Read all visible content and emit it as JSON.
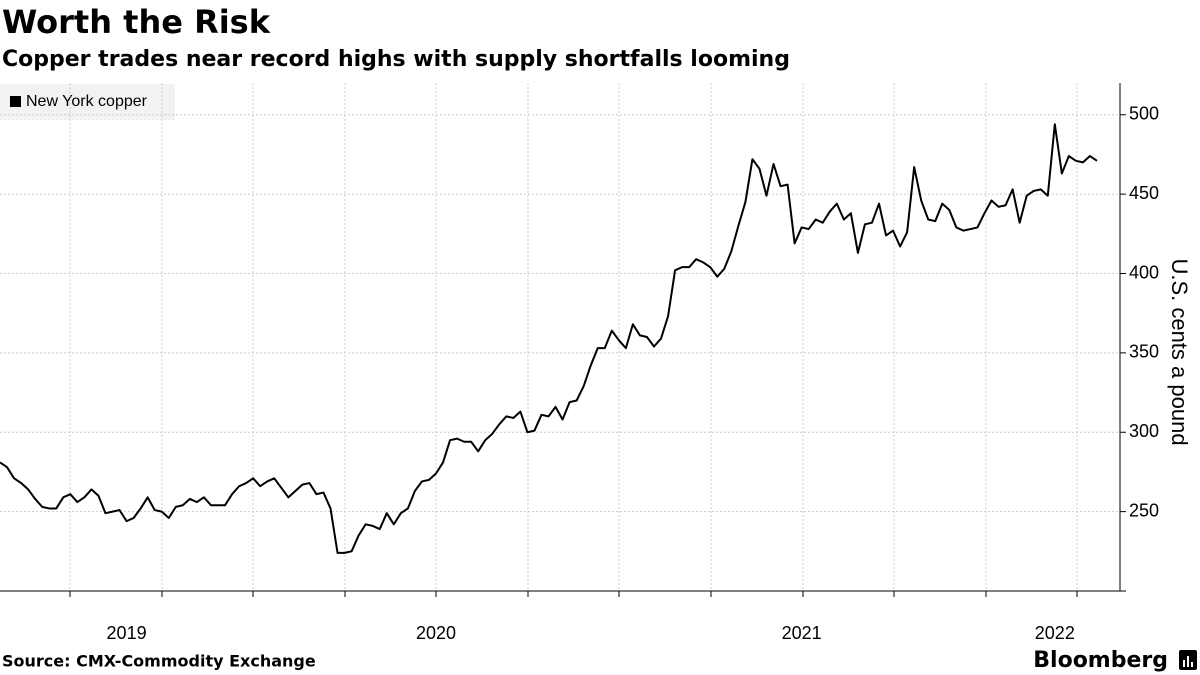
{
  "title": "Worth the Risk",
  "subtitle": "Copper trades near record highs with supply shortfalls looming",
  "source": "Source: CMX-Commodity Exchange",
  "brand": "Bloomberg",
  "chart_data": {
    "type": "line",
    "y_label": "U.S. cents a pound",
    "ylim": [
      200,
      520
    ],
    "yticks": [
      250,
      300,
      350,
      400,
      450,
      500
    ],
    "grid": true,
    "categories": [
      null,
      null,
      null,
      null,
      null,
      null,
      null,
      null,
      null,
      null,
      null,
      null,
      null,
      null,
      null,
      null,
      null,
      null,
      "2019",
      null,
      null,
      null,
      null,
      null,
      null,
      null,
      null,
      null,
      null,
      null,
      null,
      null,
      null,
      null,
      null,
      null,
      null,
      null,
      null,
      null,
      null,
      null,
      null,
      null,
      null,
      null,
      null,
      null,
      null,
      null,
      null,
      null,
      null,
      null,
      null,
      null,
      null,
      null,
      null,
      null,
      null,
      null,
      "2020",
      null,
      null,
      null,
      null,
      null,
      null,
      null,
      null,
      null,
      null,
      null,
      null,
      null,
      null,
      null,
      null,
      null,
      null,
      null,
      null,
      null,
      null,
      null,
      null,
      null,
      null,
      null,
      null,
      null,
      null,
      null,
      null,
      null,
      null,
      null,
      null,
      null,
      null,
      null,
      null,
      null,
      null,
      null,
      null,
      null,
      null,
      null,
      null,
      null,
      null,
      null,
      "2021",
      null,
      null,
      null,
      null,
      null,
      null,
      null,
      null,
      null,
      null,
      null,
      null,
      null,
      null,
      null,
      null,
      null,
      null,
      null,
      null,
      null,
      null,
      null,
      null,
      null,
      null,
      null,
      null,
      null,
      null,
      null,
      null,
      null,
      null,
      null,
      "2022",
      null,
      null,
      null,
      null,
      null,
      null
    ],
    "series": [
      {
        "name": "New York copper",
        "color": "#000000",
        "values": [
          281,
          278,
          271,
          268,
          264,
          258,
          253,
          252,
          252,
          259,
          261,
          256,
          259,
          264,
          260,
          249,
          250,
          251,
          244,
          246,
          252,
          259,
          251,
          250,
          246,
          253,
          254,
          258,
          256,
          259,
          254,
          254,
          254,
          261,
          266,
          268,
          271,
          266,
          269,
          271,
          265,
          259,
          263,
          267,
          268,
          261,
          262,
          252,
          224,
          224,
          225,
          235,
          242,
          241,
          239,
          249,
          242,
          249,
          252,
          263,
          269,
          270,
          274,
          281,
          295,
          296,
          294,
          294,
          288,
          295,
          299,
          305,
          310,
          309,
          313,
          300,
          301,
          311,
          310,
          316,
          308,
          319,
          320,
          329,
          342,
          353,
          353,
          364,
          358,
          353,
          368,
          361,
          360,
          354,
          359,
          373,
          402,
          404,
          404,
          409,
          407,
          404,
          398,
          403,
          414,
          430,
          445,
          472,
          466,
          449,
          469,
          455,
          456,
          419,
          429,
          428,
          434,
          432,
          439,
          444,
          434,
          438,
          413,
          431,
          432,
          444,
          424,
          427,
          417,
          426,
          467,
          446,
          434,
          433,
          444,
          440,
          429,
          427,
          428,
          429,
          438,
          446,
          442,
          443,
          453,
          432,
          449,
          452,
          453,
          449,
          494,
          463,
          474,
          471,
          470,
          474,
          471
        ]
      }
    ]
  }
}
